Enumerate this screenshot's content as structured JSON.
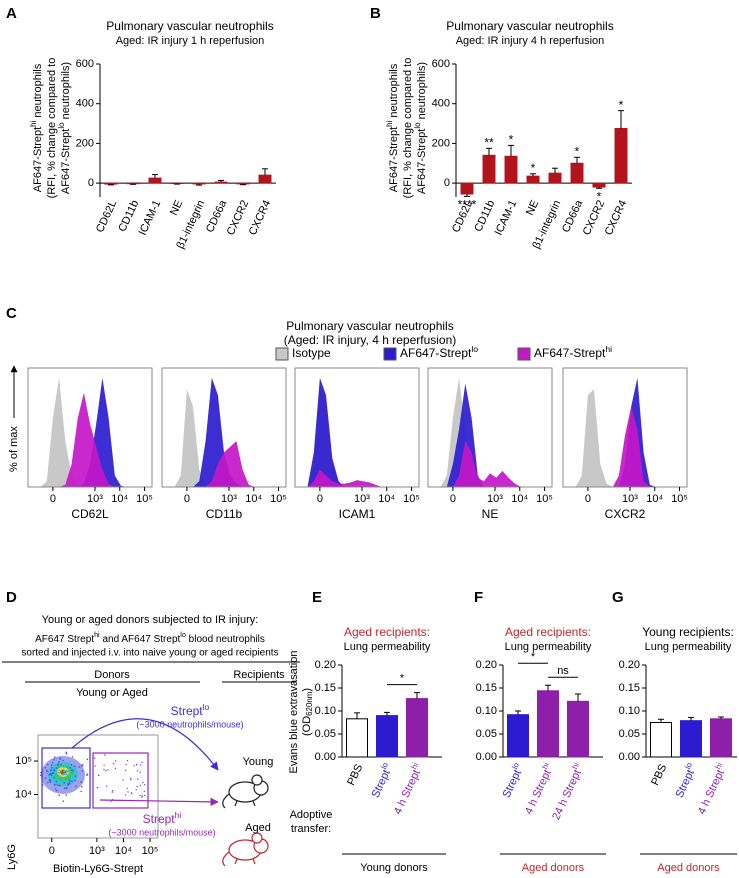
{
  "chart_data": [
    {
      "panel": "A",
      "type": "bar",
      "title": [
        "Pulmonary vascular neutrophils",
        "Aged: IR injury 1 h reperfusion"
      ],
      "ylabel": [
        [
          "AF647-Strept",
          {
            "sup": "hi"
          },
          " neutrophils"
        ],
        "(RFI, % change compared to",
        [
          "AF647-Strept",
          {
            "sup": "lo"
          },
          " neutrophils)"
        ]
      ],
      "categories": [
        "CD62L",
        "CD11b",
        "ICAM-1",
        "NE",
        "β1-integrin",
        "CD66a",
        "CXCR2",
        "CXCR4"
      ],
      "values": [
        -5,
        -3,
        25,
        -2,
        -4,
        5,
        -4,
        40
      ],
      "errors": [
        4,
        3,
        18,
        3,
        6,
        8,
        4,
        32
      ],
      "color": "#b3141c",
      "ylim": [
        -70,
        600
      ],
      "yticks": [
        0,
        200,
        400,
        600
      ]
    },
    {
      "panel": "B",
      "type": "bar",
      "title": [
        "Pulmonary vascular neutrophils",
        "Aged: IR injury 4 h reperfusion"
      ],
      "ylabel": [
        [
          "AF647-Strept",
          {
            "sup": "hi"
          },
          " neutrophils"
        ],
        "(RFI, % change compared to",
        [
          "AF647-Strept",
          {
            "sup": "lo"
          },
          " neutrophils)"
        ]
      ],
      "categories": [
        "CD62L",
        "CD11b",
        "ICAM-1",
        "NE",
        "β1-integrin",
        "CD66a",
        "CXCR2",
        "CXCR4"
      ],
      "values": [
        -55,
        140,
        135,
        35,
        50,
        100,
        -20,
        275
      ],
      "errors": [
        12,
        35,
        55,
        12,
        25,
        30,
        6,
        90
      ],
      "annotations": [
        "****",
        "**",
        "*",
        "*",
        null,
        "*",
        "*",
        "*"
      ],
      "color": "#b3141c",
      "ylim": [
        -70,
        600
      ],
      "yticks": [
        0,
        200,
        400,
        600
      ]
    },
    {
      "panel": "C",
      "type": "area",
      "title": [
        "Pulmonary vascular neutrophils",
        "(Aged: IR injury, 4 h reperfusion)"
      ],
      "ylabel": "% of max",
      "series": [
        {
          "name": "Isotype",
          "color": "#c8c8c8"
        },
        {
          "name": [
            "AF647-Strept",
            {
              "sup": "lo"
            }
          ],
          "color": "#2b1ccf"
        },
        {
          "name": [
            "AF647-Strept",
            {
              "sup": "hi"
            }
          ],
          "color": "#c417c8"
        }
      ],
      "xscale": "biexponential",
      "xlim": [
        -200,
        200000
      ],
      "xticks": [
        0,
        {
          "value": 1000,
          "label": "10³"
        },
        {
          "value": 10000,
          "label": "10⁴"
        },
        {
          "value": 100000,
          "label": "10⁵"
        }
      ],
      "ylim": [
        0,
        100
      ],
      "x": [
        -57,
        -24,
        0,
        24,
        57,
        110,
        200,
        355,
        630,
        1120,
        2000,
        3560,
        6320,
        11200,
        20000,
        35600,
        63200,
        112000
      ],
      "panels": [
        {
          "xlabel": "CD62L",
          "values": [
            [
              0,
              5,
              60,
              95,
              40,
              10,
              2,
              0,
              0,
              0,
              0,
              0,
              0,
              0,
              0,
              0,
              0,
              0
            ],
            [
              0,
              0,
              0,
              0,
              0,
              0,
              0,
              3,
              20,
              55,
              95,
              60,
              10,
              1,
              0,
              0,
              0,
              0
            ],
            [
              0,
              0,
              0,
              0,
              2,
              20,
              60,
              82,
              55,
              35,
              15,
              3,
              0,
              0,
              0,
              0,
              0,
              0
            ]
          ]
        },
        {
          "xlabel": "CD11b",
          "values": [
            [
              0,
              10,
              85,
              70,
              15,
              3,
              0,
              0,
              0,
              0,
              0,
              0,
              0,
              0,
              0,
              0,
              0,
              0
            ],
            [
              0,
              0,
              0,
              0,
              5,
              40,
              95,
              80,
              30,
              10,
              3,
              0,
              0,
              0,
              0,
              0,
              0,
              0
            ],
            [
              0,
              0,
              0,
              0,
              0,
              0,
              5,
              20,
              30,
              35,
              40,
              15,
              2,
              0,
              0,
              0,
              0,
              0
            ]
          ]
        },
        {
          "xlabel": "ICAM1",
          "values": [
            [
              0,
              20,
              85,
              75,
              20,
              5,
              0,
              0,
              0,
              0,
              0,
              0,
              0,
              0,
              0,
              0,
              0,
              0
            ],
            [
              0,
              30,
              95,
              80,
              25,
              5,
              0,
              0,
              0,
              0,
              0,
              0,
              0,
              0,
              0,
              0,
              0,
              0
            ],
            [
              0,
              5,
              15,
              10,
              5,
              3,
              3,
              4,
              6,
              5,
              4,
              2,
              0,
              0,
              0,
              0,
              0,
              0
            ]
          ]
        },
        {
          "xlabel": "NE",
          "values": [
            [
              0,
              10,
              60,
              95,
              50,
              10,
              0,
              0,
              0,
              0,
              0,
              0,
              0,
              0,
              0,
              0,
              0,
              0
            ],
            [
              0,
              0,
              20,
              50,
              90,
              60,
              10,
              0,
              0,
              0,
              0,
              0,
              0,
              0,
              0,
              0,
              0,
              0
            ],
            [
              0,
              0,
              0,
              10,
              40,
              30,
              8,
              5,
              12,
              8,
              14,
              8,
              3,
              0,
              0,
              0,
              0,
              0
            ]
          ]
        },
        {
          "xlabel": "CXCR2",
          "values": [
            [
              0,
              10,
              80,
              85,
              20,
              3,
              0,
              0,
              0,
              0,
              0,
              0,
              0,
              0,
              0,
              0,
              0,
              0
            ],
            [
              0,
              0,
              0,
              0,
              0,
              0,
              0,
              0,
              20,
              70,
              95,
              30,
              2,
              0,
              0,
              0,
              0,
              0
            ],
            [
              0,
              0,
              0,
              0,
              0,
              0,
              0,
              10,
              45,
              70,
              50,
              5,
              0,
              0,
              0,
              0,
              0,
              0
            ]
          ]
        }
      ]
    },
    {
      "panel": "E",
      "type": "bar",
      "title": [
        "Aged recipients:",
        "Lung permeability"
      ],
      "title_color": "#c0272d",
      "ylabel": [
        "Evans blue extravasation",
        [
          "(OD",
          {
            "sub": "620nm"
          },
          ")"
        ]
      ],
      "row_label": [
        "Adoptive",
        "transfer:"
      ],
      "categories": [
        "PBS",
        [
          "Strept",
          {
            "sup": "lo"
          }
        ],
        [
          "4 h Strept",
          {
            "sup": "hi"
          }
        ]
      ],
      "label_colors": [
        "#000000",
        "#2b1ccf",
        "#8e1fa8"
      ],
      "values": [
        0.083,
        0.09,
        0.127
      ],
      "errors": [
        0.013,
        0.007,
        0.013
      ],
      "colors": [
        "#ffffff",
        "#2b1ccf",
        "#8e1fa8"
      ],
      "ylim": [
        0,
        0.2
      ],
      "yticks": [
        {
          "value": 0,
          "label": "0.00"
        },
        {
          "value": 0.05,
          "label": "0.05"
        },
        {
          "value": 0.1,
          "label": "0.10"
        },
        {
          "value": 0.15,
          "label": "0.15"
        },
        {
          "value": 0.2,
          "label": "0.20"
        }
      ],
      "significance": [
        {
          "between": [
            1,
            2
          ],
          "label": "*"
        }
      ],
      "footer": "Young donors",
      "footer_color": "#000000"
    },
    {
      "panel": "F",
      "type": "bar",
      "title": [
        "Aged recipients:",
        "Lung permeability"
      ],
      "title_color": "#c0272d",
      "categories": [
        [
          "Strept",
          {
            "sup": "lo"
          }
        ],
        [
          "4 h Strept",
          {
            "sup": "hi"
          }
        ],
        [
          "24 h Strept",
          {
            "sup": "hi"
          }
        ]
      ],
      "label_colors": [
        "#2b1ccf",
        "#8e1fa8",
        "#8e1fa8"
      ],
      "values": [
        0.092,
        0.144,
        0.121
      ],
      "errors": [
        0.008,
        0.012,
        0.016
      ],
      "colors": [
        "#2b1ccf",
        "#8e1fa8",
        "#8e1fa8"
      ],
      "ylim": [
        0,
        0.2
      ],
      "yticks": [
        {
          "value": 0,
          "label": "0.00"
        },
        {
          "value": 0.05,
          "label": "0.05"
        },
        {
          "value": 0.1,
          "label": "0.10"
        },
        {
          "value": 0.15,
          "label": "0.15"
        },
        {
          "value": 0.2,
          "label": "0.20"
        }
      ],
      "significance": [
        {
          "between": [
            0,
            1
          ],
          "label": "*"
        },
        {
          "between": [
            1,
            2
          ],
          "label": "ns"
        }
      ],
      "footer": "Aged donors",
      "footer_color": "#c0272d"
    },
    {
      "panel": "G",
      "type": "bar",
      "title": [
        "Young recipients:",
        "Lung permeability"
      ],
      "title_color": "#000000",
      "categories": [
        "PBS",
        [
          "Strept",
          {
            "sup": "lo"
          }
        ],
        [
          "4 h Strept",
          {
            "sup": "hi"
          }
        ]
      ],
      "label_colors": [
        "#000000",
        "#2b1ccf",
        "#8e1fa8"
      ],
      "values": [
        0.075,
        0.079,
        0.083
      ],
      "errors": [
        0.007,
        0.007,
        0.004
      ],
      "colors": [
        "#ffffff",
        "#2b1ccf",
        "#8e1fa8"
      ],
      "ylim": [
        0,
        0.2
      ],
      "yticks": [
        {
          "value": 0,
          "label": "0.00"
        },
        {
          "value": 0.05,
          "label": "0.05"
        },
        {
          "value": 0.1,
          "label": "0.10"
        },
        {
          "value": 0.15,
          "label": "0.15"
        },
        {
          "value": 0.2,
          "label": "0.20"
        }
      ],
      "footer": "Aged donors",
      "footer_color": "#c0272d"
    }
  ],
  "diagram": {
    "panel": "D",
    "intro": [
      "Young or aged donors subjected to IR injury:",
      [
        "AF647 Strept",
        {
          "sup": "hi"
        },
        " and AF647 Strept",
        {
          "sup": "lo"
        },
        " blood neutrophils"
      ],
      "sorted and injected i.v. into naive young or aged recipients"
    ],
    "donors": "Donors",
    "recipients": "Recipients",
    "donor_group": "Young or Aged",
    "gates": [
      {
        "label": [
          "Strept",
          {
            "sup": "lo"
          }
        ],
        "count": "(~3000 neutrophils/mouse)",
        "recipient": "Young",
        "color": "#3b2fd6"
      },
      {
        "label": [
          "Strept",
          {
            "sup": "hi"
          }
        ],
        "count": "(~3000 neutrophils/mouse)",
        "recipient": "Aged",
        "color": "#9b26b6"
      }
    ],
    "xlabel": "Biotin-Ly6G-Strept",
    "ylabel": "Ly6G",
    "xscale": "biexponential",
    "xlim": [
      -60,
      200000
    ],
    "xticks": [
      0,
      {
        "value": 1000,
        "label": "10³"
      },
      {
        "value": 10000,
        "label": "10⁴"
      },
      {
        "value": 100000,
        "label": "10⁵"
      }
    ],
    "yscale": "log",
    "ylim": [
      500,
      600000
    ],
    "yticks": [
      {
        "value": 10000,
        "label": "10⁴"
      },
      {
        "value": 100000,
        "label": "10⁵"
      }
    ]
  }
}
